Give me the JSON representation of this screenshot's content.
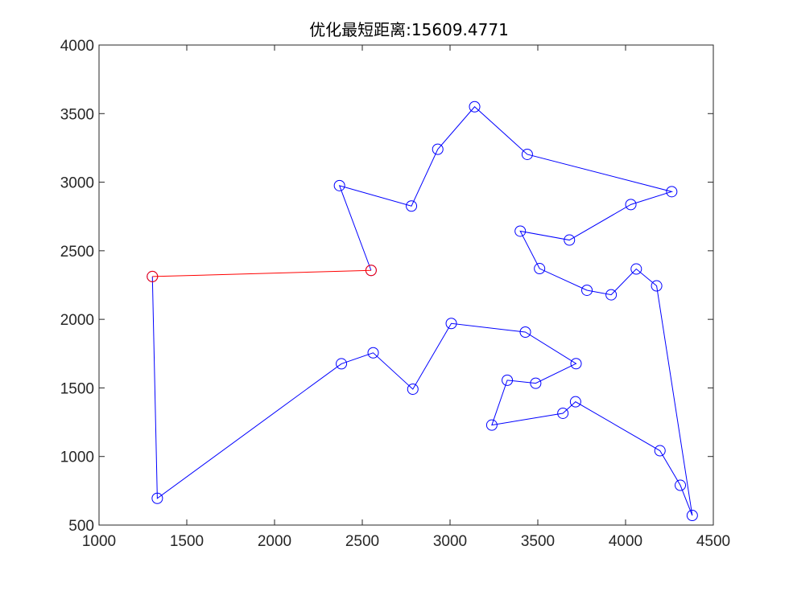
{
  "chart_data": {
    "type": "line",
    "title": "优化最短距离:15609.4771",
    "xlabel": "",
    "ylabel": "",
    "xlim": [
      1000,
      4500
    ],
    "ylim": [
      500,
      4000
    ],
    "xticks": [
      1000,
      1500,
      2000,
      2500,
      3000,
      3500,
      4000,
      4500
    ],
    "yticks": [
      500,
      1000,
      1500,
      2000,
      2500,
      3000,
      3500,
      4000
    ],
    "grid": false,
    "series": [
      {
        "color": "#0000ff",
        "marker": "circle",
        "x": [
          2550,
          2370,
          2780,
          2930,
          3140,
          3440,
          4263,
          4030,
          3680,
          3400,
          3510,
          3780,
          3918,
          4061,
          4177,
          4380,
          4312,
          4196,
          3715,
          3643,
          3238,
          3326,
          3488,
          3718,
          3429,
          3007,
          2788,
          2562,
          2381,
          1332,
          1304
        ],
        "y": [
          2357,
          2975,
          2826,
          3240,
          3550,
          3203,
          2931,
          2837,
          2578,
          2643,
          2370,
          2212,
          2179,
          2367,
          2244,
          570,
          790,
          1042,
          1399,
          1315,
          1229,
          1556,
          1534,
          1677,
          1907,
          1970,
          1491,
          1756,
          1676,
          695,
          2312
        ]
      },
      {
        "color": "#ff0000",
        "marker": "circle",
        "x": [
          1304,
          2550
        ],
        "y": [
          2312,
          2357
        ]
      }
    ]
  }
}
